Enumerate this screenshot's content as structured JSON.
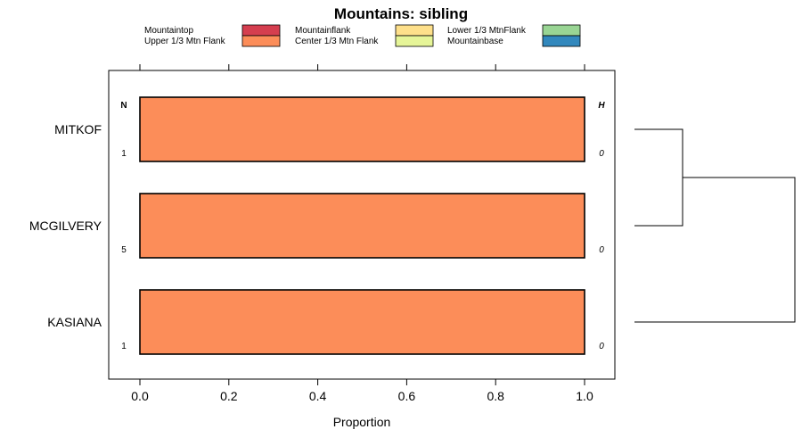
{
  "chart_data": {
    "type": "bar",
    "orientation": "horizontal",
    "stacked": true,
    "title": "Mountains: sibling",
    "xlabel": "Proportion",
    "ylabel": "",
    "xlim": [
      -0.07,
      1.07
    ],
    "x_ticks": [
      0.0,
      0.2,
      0.4,
      0.6,
      0.8,
      1.0
    ],
    "x_tick_labels": [
      "0.0",
      "0.2",
      "0.4",
      "0.6",
      "0.8",
      "1.0"
    ],
    "categories": [
      "MITKOF",
      "MCGILVERY",
      "KASIANA"
    ],
    "n_header": "N",
    "h_header": "H",
    "n_values": [
      "1",
      "5",
      "1"
    ],
    "h_values": [
      "0",
      "0",
      "0"
    ],
    "series": [
      {
        "name": "Mountaintop",
        "color": "#d53e4f",
        "values": [
          0,
          0,
          0
        ]
      },
      {
        "name": "Upper 1/3 Mtn Flank",
        "color": "#fc8d59",
        "values": [
          1,
          1,
          1
        ]
      },
      {
        "name": "Mountainflank",
        "color": "#fee08b",
        "values": [
          0,
          0,
          0
        ]
      },
      {
        "name": "Center 1/3 Mtn Flank",
        "color": "#e6f598",
        "values": [
          0,
          0,
          0
        ]
      },
      {
        "name": "Lower 1/3 MtnFlank",
        "color": "#99d594",
        "values": [
          0,
          0,
          0
        ]
      },
      {
        "name": "Mountainbase",
        "color": "#3288bd",
        "values": [
          0,
          0,
          0
        ]
      }
    ],
    "legend_position": "top",
    "dendrogram": {
      "leaves": [
        "MITKOF",
        "MCGILVERY",
        "KASIANA"
      ],
      "merges": [
        {
          "members": [
            "MITKOF",
            "MCGILVERY"
          ],
          "height": 0.3
        },
        {
          "members": [
            "MITKOF",
            "MCGILVERY",
            "KASIANA"
          ],
          "height": 1.0
        }
      ]
    }
  }
}
